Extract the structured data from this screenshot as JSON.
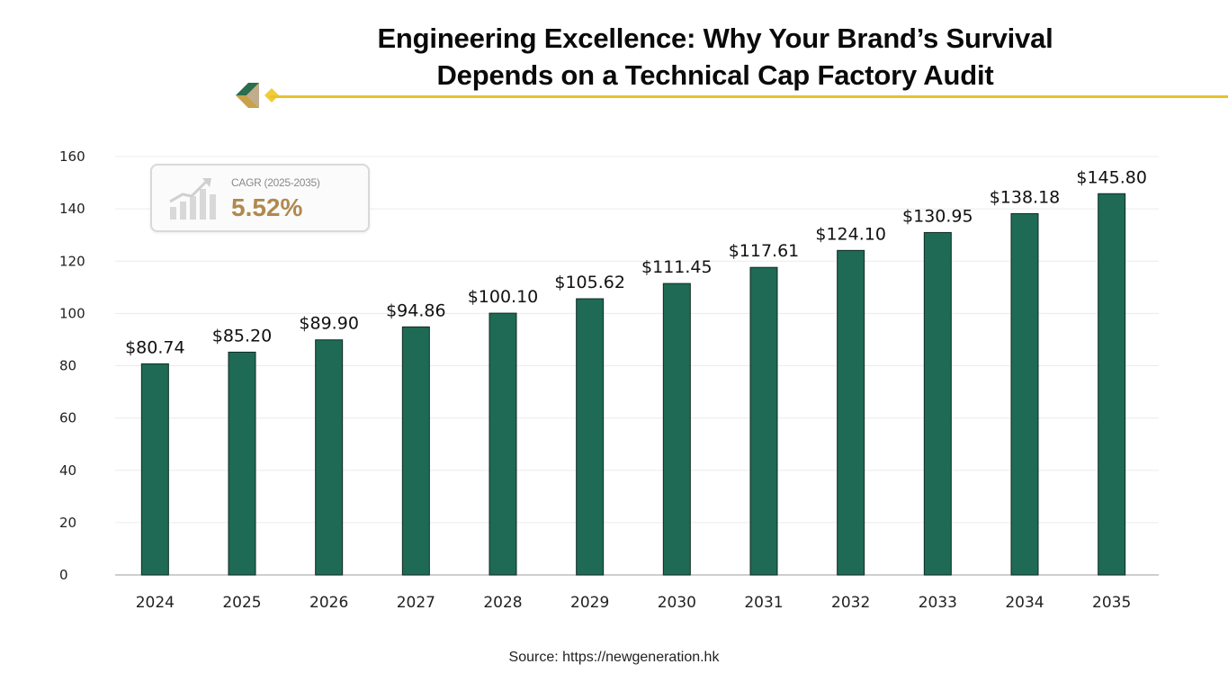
{
  "header": {
    "title_line1": "Engineering Excellence: Why Your Brand’s Survival",
    "title_line2": "Depends on a Technical Cap Factory Audit"
  },
  "cagr": {
    "label": "CAGR (2025-2035)",
    "value": "5.52%"
  },
  "source": "Source: https://newgeneration.hk",
  "colors": {
    "bar": "#1e6a55",
    "accent_line": "#e6c22e",
    "cagr_value": "#b0894f"
  },
  "chart_data": {
    "type": "bar",
    "title": "",
    "xlabel": "",
    "ylabel": "",
    "categories": [
      "2024",
      "2025",
      "2026",
      "2027",
      "2028",
      "2029",
      "2030",
      "2031",
      "2032",
      "2033",
      "2034",
      "2035"
    ],
    "values": [
      80.74,
      85.2,
      89.9,
      94.86,
      100.1,
      105.62,
      111.45,
      117.61,
      124.1,
      130.95,
      138.18,
      145.8
    ],
    "value_labels": [
      "$80.74",
      "$85.20",
      "$89.90",
      "$94.86",
      "$100.10",
      "$105.62",
      "$111.45",
      "$117.61",
      "$124.10",
      "$130.95",
      "$138.18",
      "$145.80"
    ],
    "yticks": [
      0,
      20,
      40,
      60,
      80,
      100,
      120,
      140,
      160
    ],
    "ylim": [
      0,
      160
    ],
    "grid": true,
    "legend": "none"
  }
}
